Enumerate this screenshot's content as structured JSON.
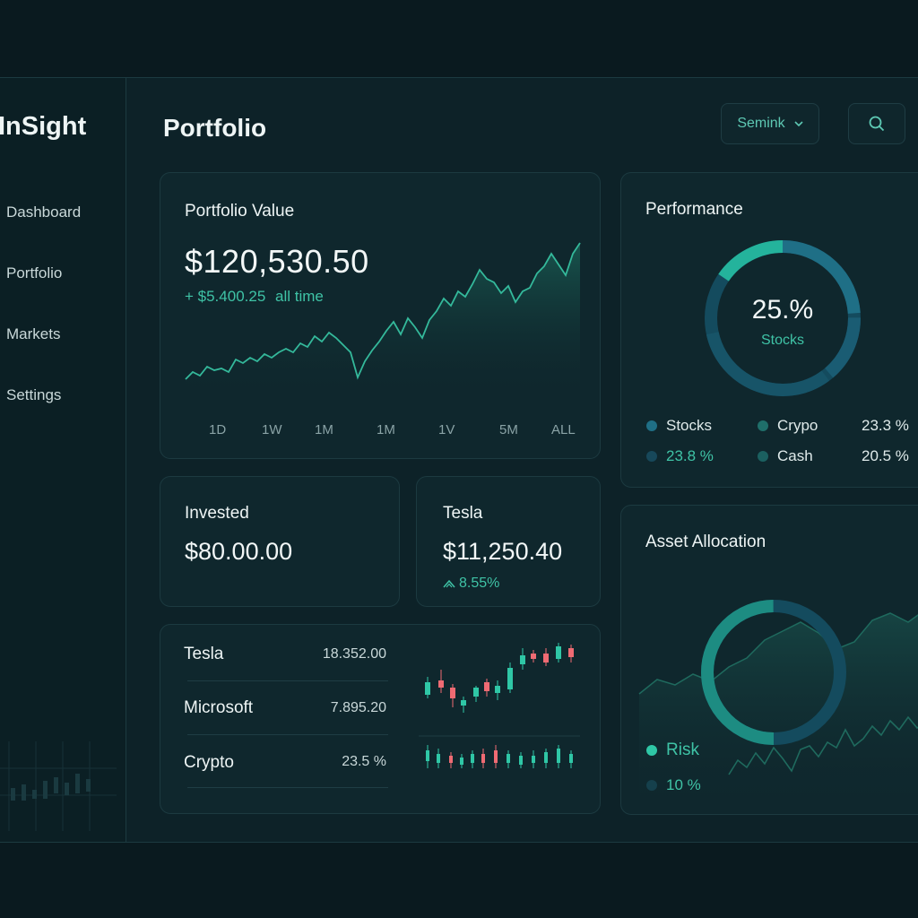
{
  "sidebar": {
    "logo": "InSight",
    "items": [
      {
        "label": "Dashboard"
      },
      {
        "label": "Portfolio"
      },
      {
        "label": "Markets"
      },
      {
        "label": "Settings"
      }
    ]
  },
  "header": {
    "title": "Portfolio",
    "user_select": "Semink",
    "search_icon": "search-icon"
  },
  "portfolio_value": {
    "title": "Portfolio Value",
    "amount": "$120,530.50",
    "change": "+ $5.400.25",
    "change_period": "all time",
    "ranges": [
      "1D",
      "1W",
      "1M",
      "1M",
      "1V",
      "5M",
      "ALL"
    ]
  },
  "invested": {
    "title": "Invested",
    "amount": "$80.00.00"
  },
  "tesla": {
    "title": "Tesla",
    "amount": "$11,250.40",
    "change": "8.55%"
  },
  "holdings": [
    {
      "name": "Tesla",
      "value": "18.352.00"
    },
    {
      "name": "Microsoft",
      "value": "7.895.20"
    },
    {
      "name": "Crypto",
      "value": "23.5 %"
    }
  ],
  "performance": {
    "title": "Performance",
    "center_value": "25.%",
    "center_label": "Stocks",
    "legend": [
      {
        "label": "Stocks",
        "value": "23.3 %",
        "value_label": "Crypo"
      },
      {
        "label": "23.8 %",
        "value": "20.5 %",
        "value_label": "Cash"
      }
    ]
  },
  "asset_allocation": {
    "title": "Asset Allocation",
    "risk_label": "Risk",
    "risk_value": "10 %"
  },
  "colors": {
    "accent": "#3fc3a6",
    "accent_dark": "#1e6f86",
    "candle_up": "#2fc7a6",
    "candle_down": "#ef6b73"
  }
}
